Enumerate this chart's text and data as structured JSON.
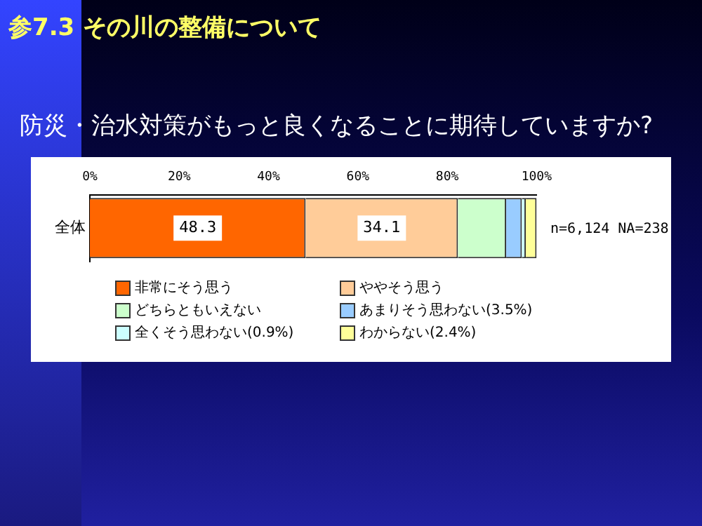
{
  "chart_data": {
    "type": "bar",
    "orientation": "horizontal",
    "stacked": true,
    "title": "参7.3 その川の整備について",
    "subtitle": "防災・治水対策がもっと良くなることに期待していますか?",
    "categories": [
      "全体"
    ],
    "series": [
      {
        "name": "非常にそう思う",
        "color": "#ff6600",
        "values": [
          48.3
        ],
        "value_labels": [
          "48.3"
        ]
      },
      {
        "name": "ややそう思う",
        "color": "#ffcc99",
        "values": [
          34.1
        ],
        "value_labels": [
          "34.1"
        ]
      },
      {
        "name": "どちらともいえない",
        "color": "#ccffcc",
        "values": [
          10.8
        ]
      },
      {
        "name": "あまりそう思わない(3.5%)",
        "color": "#99ccff",
        "values": [
          3.5
        ]
      },
      {
        "name": "全くそう思わない(0.9%)",
        "color": "#ccffff",
        "values": [
          0.9
        ]
      },
      {
        "name": "わからない(2.4%)",
        "color": "#ffff99",
        "values": [
          2.4
        ]
      }
    ],
    "xlim": [
      0,
      100
    ],
    "xticks": [
      {
        "value": 0,
        "label": "0%"
      },
      {
        "value": 20,
        "label": "20%"
      },
      {
        "value": 40,
        "label": "40%"
      },
      {
        "value": 60,
        "label": "60%"
      },
      {
        "value": 80,
        "label": "80%"
      },
      {
        "value": 100,
        "label": "100%"
      }
    ],
    "grid": false,
    "legend": "bottom",
    "annotations": [
      "n=6,124 NA=238"
    ]
  }
}
